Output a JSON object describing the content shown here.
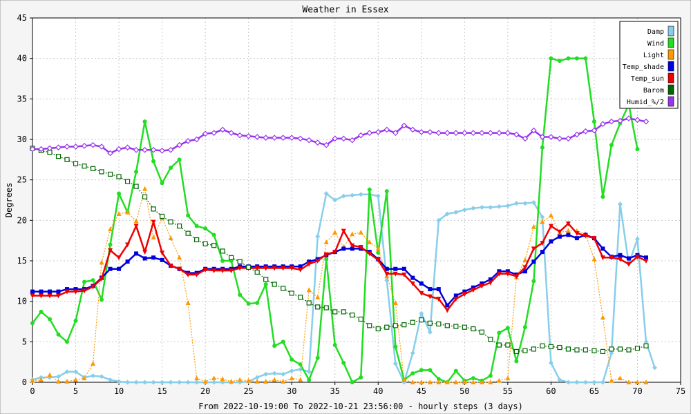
{
  "chart_data": {
    "type": "line",
    "title": "Weather in Essex",
    "xlabel": "From 2022-10-19:00 To 2022-10-21 23:56:00 - hourly steps (3 days)",
    "ylabel": "Degrees",
    "xlim": [
      0,
      75
    ],
    "ylim": [
      0,
      45
    ],
    "xticks": [
      0,
      5,
      10,
      15,
      20,
      25,
      30,
      35,
      40,
      45,
      50,
      55,
      60,
      65,
      70,
      75
    ],
    "yticks": [
      0,
      5,
      10,
      15,
      20,
      25,
      30,
      35,
      40,
      45
    ],
    "grid": true,
    "legend_position": "top-right",
    "series": [
      {
        "name": "Damp",
        "color": "#87ceeb",
        "marker": "diamond",
        "dash": "",
        "values": [
          0.3,
          0.6,
          0.6,
          0.7,
          1.3,
          1.3,
          0.6,
          0.8,
          0.7,
          0.3,
          0.1,
          0,
          0,
          0,
          0,
          0,
          0,
          0,
          0,
          0,
          0,
          0,
          0,
          0,
          0,
          0.1,
          0.6,
          1,
          1.1,
          1,
          1.4,
          1.6,
          1.3,
          18,
          23.3,
          22.5,
          23,
          23.1,
          23.2,
          23.2,
          23,
          12.6,
          2.3,
          0,
          3.6,
          8.5,
          6.2,
          20,
          20.8,
          21,
          21.3,
          21.5,
          21.6,
          21.6,
          21.7,
          21.8,
          22.1,
          22.1,
          22.2,
          20.4,
          2.4,
          0.3,
          0,
          0,
          0,
          0,
          0,
          3.6,
          22,
          14.6,
          17.7,
          5,
          1.8
        ]
      },
      {
        "name": "Wind",
        "color": "#22dd22",
        "marker": "circle",
        "dash": "",
        "values": [
          7.3,
          8.7,
          7.8,
          5.9,
          5,
          7.6,
          12.4,
          12.6,
          10.2,
          17,
          23.3,
          21,
          26,
          32.2,
          27.3,
          24.6,
          26.5,
          27.5,
          20.6,
          19.3,
          19,
          18.2,
          15,
          15,
          10.8,
          9.7,
          9.8,
          12.1,
          4.5,
          5,
          2.8,
          2.2,
          0.3,
          3,
          15.2,
          4.6,
          2.4,
          0,
          0.6,
          23.8,
          16,
          23.6,
          4.4,
          0.3,
          1.1,
          1.5,
          1.5,
          0.4,
          0,
          1.4,
          0.2,
          0.5,
          0.2,
          0.8,
          6.1,
          6.7,
          2.6,
          6.8,
          12.5,
          29,
          40,
          39.7,
          40,
          40,
          40,
          32.2,
          22.9,
          29.3,
          32,
          34.3,
          28.8
        ]
      },
      {
        "name": "Light",
        "color": "#ff9900",
        "marker": "triangle-up",
        "dash": "2,2",
        "values": [
          0.2,
          0.3,
          0.9,
          0.1,
          0.1,
          0.3,
          0.5,
          2.3,
          14.8,
          18.9,
          20.8,
          21,
          19.9,
          23.9,
          17.9,
          20.3,
          17.8,
          15.4,
          9.8,
          0.5,
          0.1,
          0.5,
          0.4,
          0.1,
          0.3,
          0.2,
          0.1,
          0.1,
          0.3,
          0.1,
          0.5,
          0.3,
          11.4,
          10.5,
          17.3,
          18.5,
          16.7,
          18.3,
          18.5,
          17.3,
          16.5,
          13.1,
          9.8,
          0.3,
          0,
          0,
          0,
          0,
          0,
          0,
          0,
          0,
          0,
          0,
          0.2,
          0.5,
          13,
          15.1,
          19.2,
          19.8,
          20.6,
          18.5,
          18.7,
          18.7,
          18.3,
          15.2,
          8,
          0.2,
          0.5,
          0,
          0,
          0
        ]
      },
      {
        "name": "Temp_shade",
        "color": "#0000dd",
        "marker": "square",
        "dash": "",
        "values": [
          11.2,
          11.2,
          11.2,
          11.2,
          11.5,
          11.5,
          11.5,
          11.9,
          12.9,
          14,
          14,
          14.9,
          15.9,
          15.3,
          15.4,
          15.1,
          14.4,
          14,
          13.5,
          13.5,
          14,
          14,
          14,
          14,
          14.3,
          14.3,
          14.3,
          14.3,
          14.3,
          14.3,
          14.3,
          14.3,
          14.9,
          15.2,
          15.7,
          16.1,
          16.5,
          16.5,
          16.5,
          16.1,
          15.2,
          14,
          14,
          14,
          12.9,
          12.2,
          11.5,
          11.5,
          9.5,
          10.7,
          11.2,
          11.7,
          12.2,
          12.7,
          13.7,
          13.7,
          13.3,
          13.7,
          14.9,
          16.1,
          17.4,
          18,
          18.2,
          17.8,
          18.2,
          17.8,
          16.5,
          15.5,
          15.7,
          15.3,
          15.7,
          15.4
        ]
      },
      {
        "name": "Temp_sun",
        "color": "#ee0000",
        "marker": "triangle-down",
        "dash": "",
        "values": [
          10.7,
          10.7,
          10.7,
          10.7,
          11.2,
          11.2,
          11.3,
          11.8,
          12.8,
          16.3,
          15.4,
          17,
          19.3,
          16.1,
          19.8,
          16,
          14.4,
          14,
          13.3,
          13.3,
          13.9,
          13.8,
          13.8,
          13.8,
          14.1,
          14.1,
          14.1,
          14.1,
          14.1,
          14.1,
          14.1,
          13.9,
          14.6,
          15,
          15.8,
          16.1,
          18.7,
          16.9,
          16.7,
          15.9,
          15.1,
          13.4,
          13.4,
          13.3,
          12.2,
          11,
          10.6,
          10.3,
          8.9,
          10.3,
          10.9,
          11.4,
          11.9,
          12.3,
          13.4,
          13.4,
          13.1,
          14.2,
          16.5,
          17.2,
          19.3,
          18.6,
          19.6,
          18.4,
          18.1,
          17.8,
          15.4,
          15.4,
          15.2,
          14.6,
          15.5,
          15
        ]
      },
      {
        "name": "Barom",
        "color": "#006600",
        "marker": "open-square",
        "dash": "2,2",
        "values": [
          28.9,
          28.6,
          28.4,
          27.9,
          27.5,
          27,
          26.7,
          26.4,
          26,
          25.7,
          25.4,
          24.8,
          24.2,
          22.9,
          21.4,
          20.5,
          19.8,
          19.3,
          18.4,
          17.6,
          17.1,
          16.9,
          16.2,
          15.4,
          14.9,
          14.2,
          13.6,
          12.7,
          12.1,
          11.6,
          11,
          10.5,
          9.8,
          9.3,
          9.2,
          8.7,
          8.7,
          8.3,
          7.8,
          7,
          6.6,
          6.8,
          7,
          7.1,
          7.4,
          7.7,
          7.3,
          7.2,
          7,
          6.9,
          6.8,
          6.6,
          6.2,
          5.3,
          4.6,
          4.6,
          3.8,
          3.9,
          4.1,
          4.5,
          4.4,
          4.3,
          4.1,
          4,
          4,
          3.9,
          3.8,
          4.1,
          4.1,
          4,
          4.2,
          4.5
        ]
      },
      {
        "name": "Humid_%/2",
        "color": "#9933ee",
        "marker": "open-diamond",
        "dash": "",
        "values": [
          28.8,
          28.8,
          28.9,
          29,
          29.1,
          29.1,
          29.2,
          29.3,
          29.1,
          28.3,
          28.8,
          29,
          28.7,
          28.7,
          28.7,
          28.6,
          28.7,
          29.3,
          29.8,
          30,
          30.7,
          30.8,
          31.2,
          30.8,
          30.5,
          30.4,
          30.3,
          30.2,
          30.2,
          30.2,
          30.2,
          30.1,
          29.9,
          29.6,
          29.3,
          30.1,
          30.1,
          29.9,
          30.5,
          30.8,
          30.9,
          31.2,
          30.8,
          31.7,
          31.2,
          30.9,
          30.9,
          30.8,
          30.8,
          30.8,
          30.8,
          30.8,
          30.8,
          30.8,
          30.8,
          30.8,
          30.6,
          30.1,
          31.1,
          30.3,
          30.3,
          30.1,
          30.1,
          30.6,
          31,
          31.1,
          31.9,
          32.2,
          32.3,
          32.6,
          32.4,
          32.2
        ]
      }
    ]
  }
}
